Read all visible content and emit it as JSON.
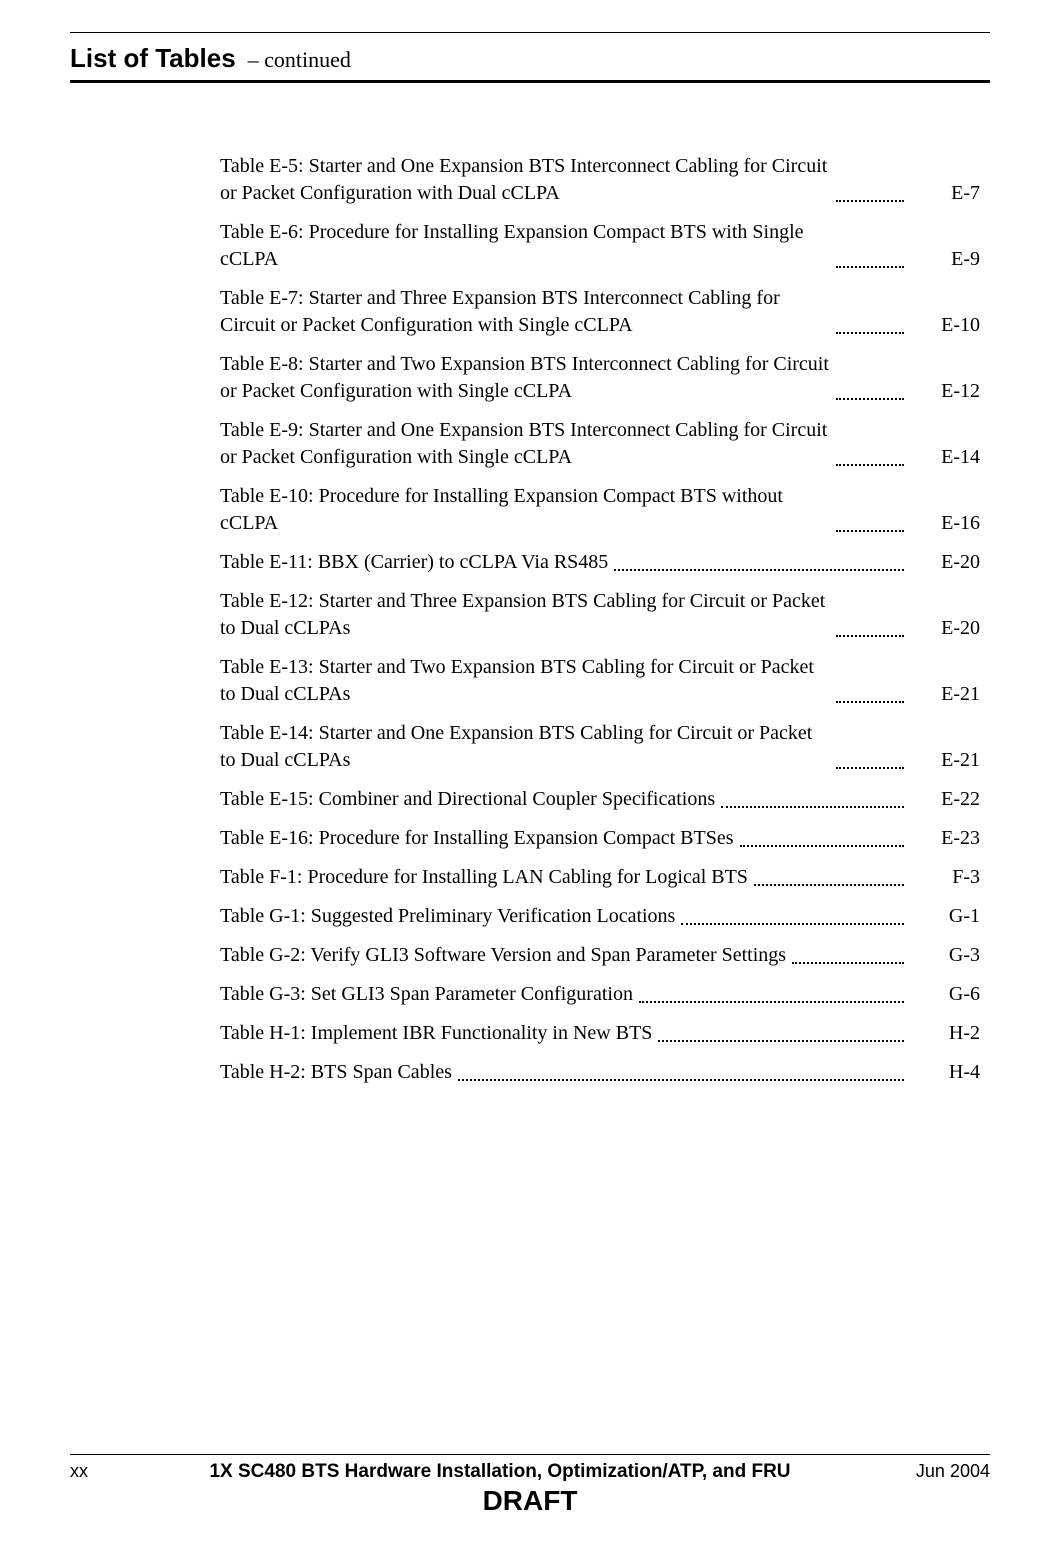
{
  "header": {
    "title": "List of Tables",
    "continued": "– continued"
  },
  "toc": [
    {
      "title": "Table E-5: Starter and One Expansion BTS Interconnect Cabling for Circuit or Packet Configuration with Dual cCLPA",
      "page": "E-7"
    },
    {
      "title": "Table E-6: Procedure for Installing Expansion Compact BTS with Single cCLPA",
      "page": "E-9"
    },
    {
      "title": "Table E-7: Starter and Three Expansion BTS Interconnect Cabling for Circuit or Packet Configuration with Single cCLPA",
      "page": "E-10"
    },
    {
      "title": "Table E-8: Starter and Two Expansion BTS Interconnect Cabling for Circuit or Packet Configuration with Single cCLPA",
      "page": "E-12"
    },
    {
      "title": "Table E-9: Starter and One Expansion BTS Interconnect Cabling for Circuit or Packet Configuration with Single cCLPA",
      "page": "E-14"
    },
    {
      "title": "Table E-10: Procedure for Installing Expansion Compact BTS without cCLPA",
      "page": "E-16"
    },
    {
      "title": "Table E-11: BBX (Carrier) to cCLPA Via RS485",
      "page": "E-20"
    },
    {
      "title": "Table E-12: Starter and Three Expansion BTS Cabling for Circuit or Packet to Dual cCLPAs",
      "page": "E-20"
    },
    {
      "title": "Table E-13: Starter and Two Expansion BTS Cabling for Circuit or Packet to Dual cCLPAs",
      "page": "E-21"
    },
    {
      "title": "Table E-14: Starter and One Expansion BTS Cabling for Circuit or Packet to Dual cCLPAs",
      "page": "E-21"
    },
    {
      "title": "Table E-15: Combiner and Directional Coupler Specifications",
      "page": "E-22"
    },
    {
      "title": "Table E-16: Procedure for Installing Expansion Compact BTSes",
      "page": "E-23"
    },
    {
      "title": "Table F-1: Procedure for Installing LAN Cabling for Logical BTS",
      "page": "F-3"
    },
    {
      "title": "Table G-1: Suggested Preliminary Verification Locations",
      "page": "G-1"
    },
    {
      "title": "Table G-2: Verify GLI3 Software Version and Span Parameter Settings",
      "page": "G-3"
    },
    {
      "title": "Table G-3: Set GLI3 Span Parameter Configuration",
      "page": "G-6"
    },
    {
      "title": "Table H-1: Implement IBR Functionality in New BTS",
      "page": "H-2"
    },
    {
      "title": "Table H-2: BTS Span Cables",
      "page": "H-4"
    }
  ],
  "footer": {
    "page_num": "xx",
    "doc_title": "1X SC480 BTS Hardware Installation, Optimization/ATP, and FRU",
    "date": "Jun 2004",
    "draft": "DRAFT"
  }
}
